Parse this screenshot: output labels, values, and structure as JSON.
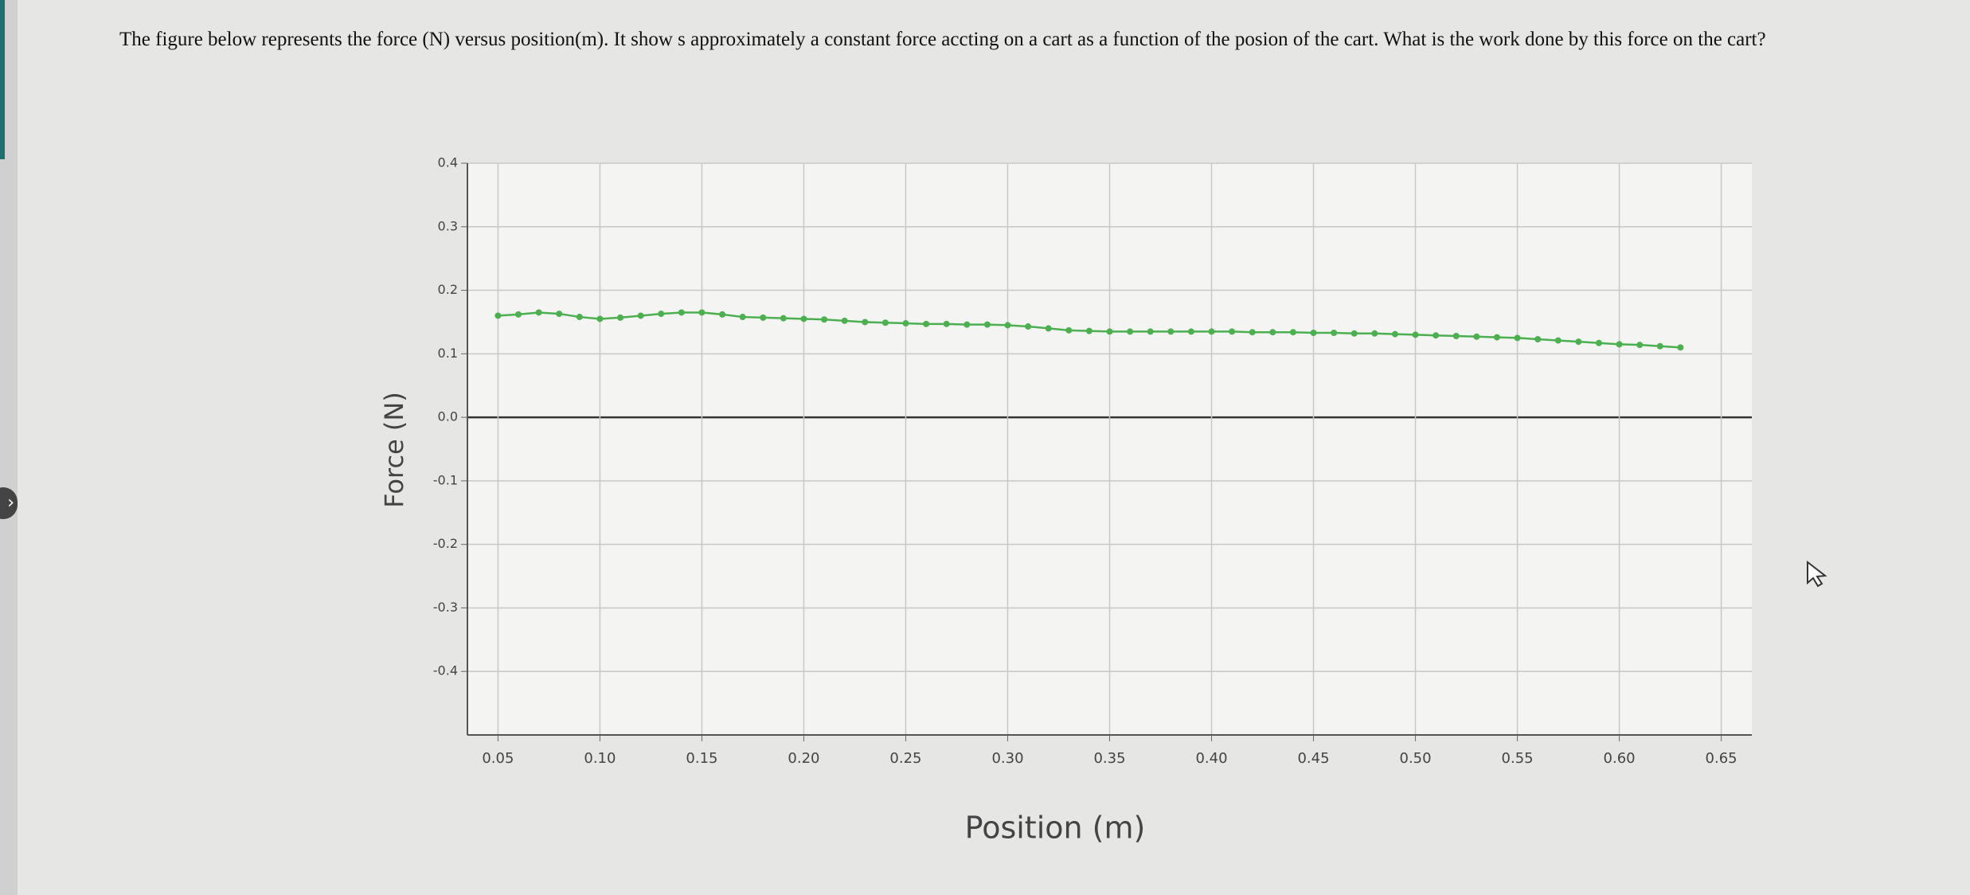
{
  "question": "The figure below represents the force (N) versus position(m). It show s approximately a constant  force accting on a cart  as a function of the posion of the cart. What is the work done by this force on the cart?",
  "chart_data": {
    "type": "scatter",
    "xlabel": "Position (m)",
    "ylabel": "Force (N)",
    "x": [
      0.05,
      0.06,
      0.07,
      0.08,
      0.09,
      0.1,
      0.11,
      0.12,
      0.13,
      0.14,
      0.15,
      0.16,
      0.17,
      0.18,
      0.19,
      0.2,
      0.21,
      0.22,
      0.23,
      0.24,
      0.25,
      0.26,
      0.27,
      0.28,
      0.29,
      0.3,
      0.31,
      0.32,
      0.33,
      0.34,
      0.35,
      0.36,
      0.37,
      0.38,
      0.39,
      0.4,
      0.41,
      0.42,
      0.43,
      0.44,
      0.45,
      0.46,
      0.47,
      0.48,
      0.49,
      0.5,
      0.51,
      0.52,
      0.53,
      0.54,
      0.55,
      0.56,
      0.57,
      0.58,
      0.59,
      0.6,
      0.61,
      0.62,
      0.63
    ],
    "values": [
      0.16,
      0.162,
      0.165,
      0.163,
      0.158,
      0.155,
      0.157,
      0.16,
      0.163,
      0.165,
      0.165,
      0.162,
      0.158,
      0.157,
      0.156,
      0.155,
      0.154,
      0.152,
      0.15,
      0.149,
      0.148,
      0.147,
      0.147,
      0.146,
      0.146,
      0.145,
      0.143,
      0.14,
      0.137,
      0.136,
      0.135,
      0.135,
      0.135,
      0.135,
      0.135,
      0.135,
      0.135,
      0.134,
      0.134,
      0.134,
      0.133,
      0.133,
      0.132,
      0.132,
      0.131,
      0.13,
      0.129,
      0.128,
      0.127,
      0.126,
      0.125,
      0.123,
      0.121,
      0.119,
      0.117,
      0.115,
      0.114,
      0.112,
      0.11
    ],
    "color": "#4caf50",
    "xlim": [
      0.035,
      0.665
    ],
    "xticks": [
      0.05,
      {
        "value": 0.1,
        "label": "0.10"
      },
      0.15,
      {
        "value": 0.2,
        "label": "0.20"
      },
      0.25,
      {
        "value": 0.3,
        "label": "0.30"
      },
      0.35,
      {
        "value": 0.4,
        "label": "0.40"
      },
      0.45,
      {
        "value": 0.5,
        "label": "0.50"
      },
      0.55,
      {
        "value": 0.6,
        "label": "0.60"
      },
      0.65
    ],
    "ylim": [
      -0.5,
      0.4
    ],
    "yticks": [
      0.4,
      0.3,
      0.2,
      0.1,
      {
        "value": 0,
        "label": "0.0"
      },
      -0.1,
      -0.2,
      -0.3,
      -0.4
    ],
    "grid": true
  }
}
